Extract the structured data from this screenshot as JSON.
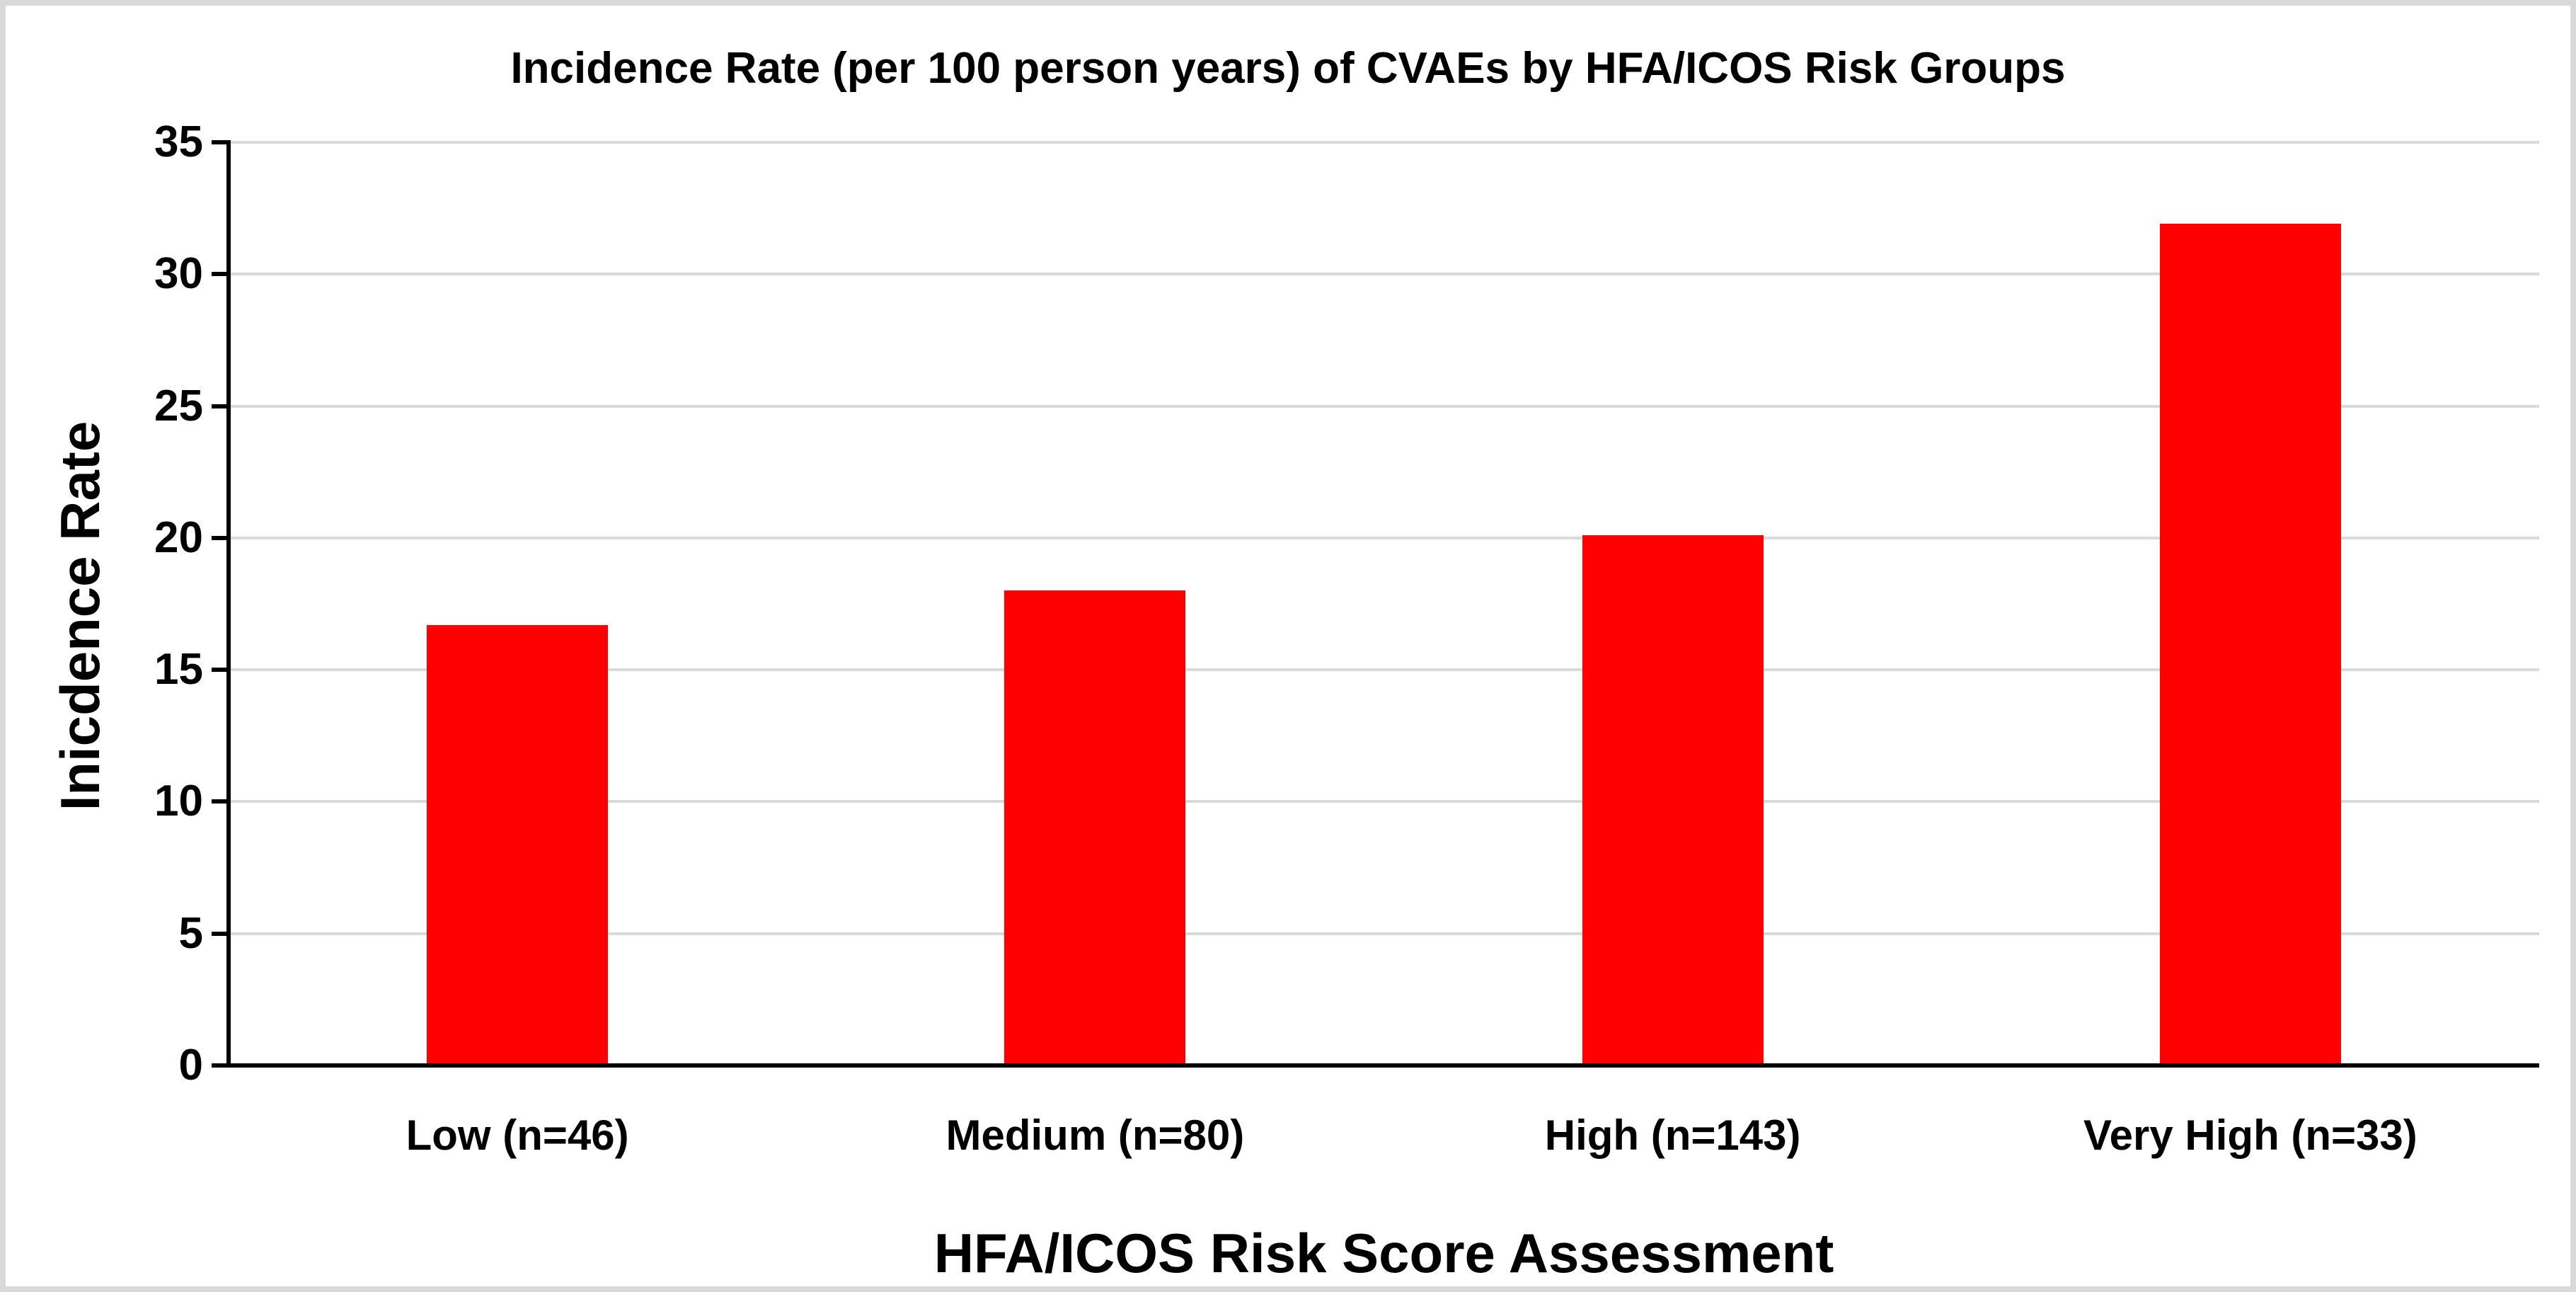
{
  "frame": {
    "background_color": "#ffffff",
    "border_color": "#d9d9d9"
  },
  "chart_data": {
    "type": "bar",
    "title": "Incidence Rate (per 100 person years) of CVAEs by HFA/ICOS Risk Groups",
    "xlabel": "HFA/ICOS Risk Score Assessment",
    "ylabel": "Inicdence Rate",
    "categories": [
      "Low (n=46)",
      "Medium (n=80)",
      "High (n=143)",
      "Very High (n=33)"
    ],
    "values": [
      16.7,
      18,
      20.1,
      31.9
    ],
    "ylim": [
      0,
      35
    ],
    "yticks": [
      0,
      5,
      10,
      15,
      20,
      25,
      30,
      35
    ],
    "grid": true,
    "legend": false,
    "bar_color": "#ff0000",
    "gridline_color": "#d9d9d9",
    "axis_color": "#000000",
    "text_color": "#000000"
  }
}
